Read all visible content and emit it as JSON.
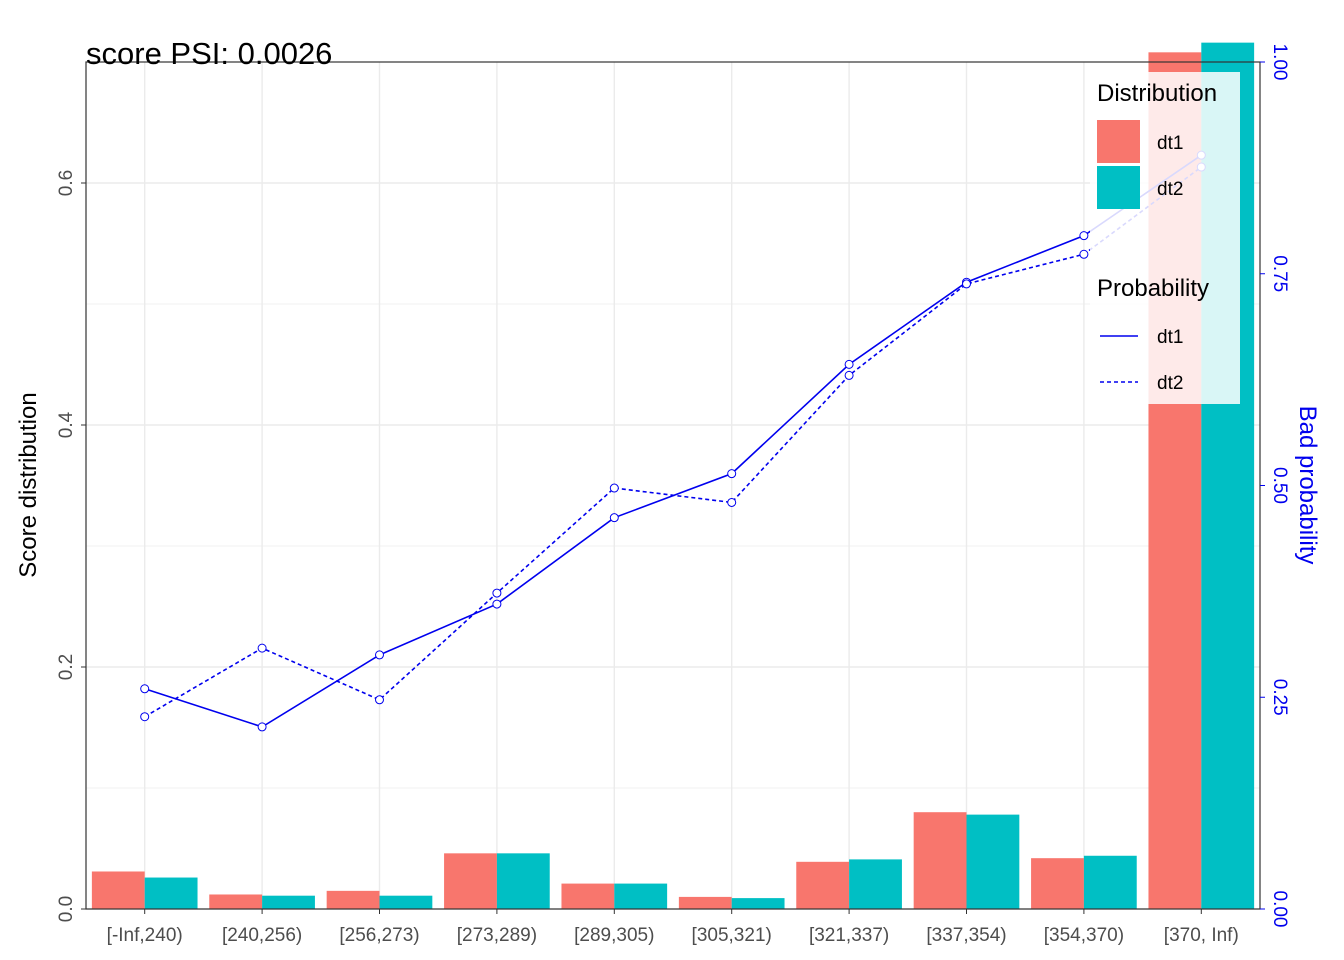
{
  "chart_data": {
    "type": "bar",
    "title": "score PSI: 0.0026",
    "xlabel": "",
    "ylabel": "Score distribution",
    "ylabel_right": "Bad probability",
    "categories": [
      "[-Inf,240)",
      "[240,256)",
      "[256,273)",
      "[273,289)",
      "[289,305)",
      "[305,321)",
      "[321,337)",
      "[337,354)",
      "[354,370)",
      "[370, Inf)"
    ],
    "ylim": [
      0,
      0.7
    ],
    "ylim_right": [
      0,
      1
    ],
    "yticks": [
      "0.0",
      "0.2",
      "0.4",
      "0.6"
    ],
    "yticks_right": [
      "0.00",
      "0.25",
      "0.50",
      "0.75",
      "1.00"
    ],
    "grid": true,
    "series": [
      {
        "name": "dt1",
        "kind": "bar",
        "axis": "left",
        "color": "#F8766D",
        "values": [
          0.031,
          0.012,
          0.015,
          0.046,
          0.021,
          0.01,
          0.039,
          0.08,
          0.042,
          0.708
        ]
      },
      {
        "name": "dt2",
        "kind": "bar",
        "axis": "left",
        "color": "#00BFC4",
        "values": [
          0.026,
          0.011,
          0.011,
          0.046,
          0.021,
          0.009,
          0.041,
          0.078,
          0.044,
          0.716
        ]
      },
      {
        "name": "dt1",
        "kind": "line",
        "axis": "right",
        "dash": "solid",
        "color": "#0000EE",
        "values": [
          0.26,
          0.215,
          0.3,
          0.36,
          0.462,
          0.514,
          0.643,
          0.74,
          0.795,
          0.89
        ]
      },
      {
        "name": "dt2",
        "kind": "line",
        "axis": "right",
        "dash": "dotted",
        "color": "#0000EE",
        "values": [
          0.227,
          0.308,
          0.247,
          0.373,
          0.497,
          0.48,
          0.63,
          0.738,
          0.773,
          0.876
        ]
      }
    ],
    "legend": {
      "placement": "top-right",
      "groups": [
        {
          "title": "Distribution",
          "items": [
            {
              "label": "dt1",
              "color": "#F8766D"
            },
            {
              "label": "dt2",
              "color": "#00BFC4"
            }
          ]
        },
        {
          "title": "Probability",
          "items": [
            {
              "label": "dt1",
              "dash": "solid"
            },
            {
              "label": "dt2",
              "dash": "dotted"
            }
          ]
        }
      ]
    }
  }
}
